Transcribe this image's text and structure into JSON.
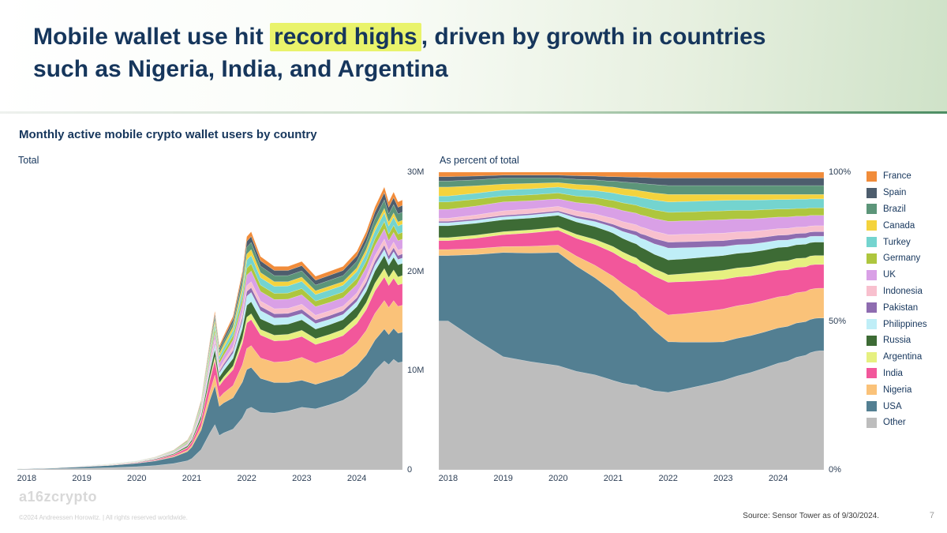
{
  "slide": {
    "title": {
      "pre": "Mobile wallet use hit ",
      "highlight": "record highs",
      "post": ", driven by growth in countries",
      "line2": "such as Nigeria, India, and Argentina"
    },
    "subtitle": "Monthly active mobile crypto wallet users by country",
    "title_color": "#16365c",
    "highlight_color": "#e9f36b"
  },
  "footer": {
    "logo_text": "a16zcrypto",
    "copyright": "©2024 Andreessen Horowitz.  |  All rights reserved worldwide.",
    "source": "Source: Sensor Tower as of 9/30/2024.",
    "page_number": "7"
  },
  "chart_data": {
    "type": "area",
    "stacked": true,
    "x": [
      2017.83,
      2018.0,
      2018.5,
      2019.0,
      2019.5,
      2020.0,
      2020.33,
      2020.67,
      2020.92,
      2021.0,
      2021.17,
      2021.33,
      2021.42,
      2021.5,
      2021.58,
      2021.75,
      2021.92,
      2022.0,
      2022.08,
      2022.25,
      2022.5,
      2022.75,
      2023.0,
      2023.25,
      2023.5,
      2023.75,
      2024.0,
      2024.17,
      2024.33,
      2024.5,
      2024.58,
      2024.67,
      2024.75,
      2024.83
    ],
    "x_ticks": [
      2018,
      2019,
      2020,
      2021,
      2022,
      2023,
      2024
    ],
    "totals_millions": [
      0.12,
      0.15,
      0.25,
      0.4,
      0.6,
      0.9,
      1.3,
      2.0,
      3.0,
      3.8,
      7.0,
      13.0,
      16.0,
      12.5,
      13.5,
      15.5,
      20.0,
      23.5,
      24.0,
      21.5,
      20.5,
      20.5,
      21.0,
      19.5,
      20.0,
      20.5,
      22.0,
      24.0,
      26.5,
      28.5,
      27.0,
      28.0,
      27.0,
      27.2
    ],
    "charts": [
      {
        "title": "Total",
        "mode": "absolute",
        "ymax": 30,
        "y_ticks": [
          {
            "v": 0,
            "label": "0"
          },
          {
            "v": 10,
            "label": "10M"
          },
          {
            "v": 20,
            "label": "20M"
          },
          {
            "v": 30,
            "label": "30M"
          }
        ]
      },
      {
        "title": "As percent of total",
        "mode": "percent",
        "ymax": 100,
        "y_ticks": [
          {
            "v": 0,
            "label": "0%"
          },
          {
            "v": 50,
            "label": "50%"
          },
          {
            "v": 100,
            "label": "100%"
          }
        ]
      }
    ],
    "series": [
      {
        "name": "Other",
        "color": "#bdbdbd",
        "share_pct": [
          50,
          50,
          43.8,
          38,
          36.3,
          35,
          33.1,
          31.9,
          30.5,
          30,
          29.1,
          28.6,
          28.5,
          27.7,
          27.5,
          26.5,
          26.2,
          26,
          26.3,
          26.9,
          27.9,
          28.9,
          30,
          31.5,
          32.7,
          34.2,
          35.8,
          36.5,
          37.8,
          38.5,
          39.3,
          39.8,
          40,
          40
        ]
      },
      {
        "name": "USA",
        "color": "#537f92",
        "share_pct": [
          22,
          22,
          28.5,
          35,
          36.5,
          38,
          35.4,
          32.6,
          30.6,
          30,
          27.8,
          25.7,
          24.5,
          23.5,
          22.5,
          20.3,
          18,
          17,
          16.7,
          16,
          15,
          14,
          13,
          12.7,
          12.4,
          12.1,
          11.9,
          11.7,
          11.5,
          11.3,
          11.2,
          11.1,
          11,
          11
        ]
      },
      {
        "name": "Nigeria",
        "color": "#fac279",
        "share_pct": [
          2,
          2,
          2,
          2,
          2.3,
          2.5,
          3.3,
          4.2,
          4.8,
          5,
          5.7,
          6.3,
          6.7,
          7,
          7.3,
          8,
          8.7,
          9,
          9.2,
          9.5,
          10,
          10.5,
          11,
          10.9,
          10.7,
          10.6,
          10.4,
          10.3,
          10.2,
          10.1,
          10.1,
          10,
          10,
          10
        ]
      },
      {
        "name": "India",
        "color": "#f2579b",
        "share_pct": [
          3,
          3,
          3.5,
          4,
          4.5,
          5,
          6,
          7,
          7.8,
          8,
          8.5,
          9,
          9.3,
          9.5,
          9.7,
          10.3,
          10.8,
          11,
          10.9,
          10.8,
          10.5,
          10.3,
          10,
          9.7,
          9.4,
          9.1,
          8.9,
          8.7,
          8.5,
          8.3,
          8.2,
          8.1,
          8,
          8
        ]
      },
      {
        "name": "Argentina",
        "color": "#e6f080",
        "share_pct": [
          1,
          1,
          1,
          1,
          1,
          1,
          1.3,
          1.7,
          1.9,
          2,
          2.1,
          2.2,
          2.2,
          2.3,
          2.3,
          2.4,
          2.5,
          2.5,
          2.5,
          2.6,
          2.8,
          2.9,
          3,
          3,
          3,
          3,
          3,
          3,
          3,
          3,
          3,
          3,
          3,
          3
        ]
      },
      {
        "name": "Russia",
        "color": "#3d6b35",
        "share_pct": [
          4,
          4,
          4,
          4,
          4,
          4,
          4.2,
          4.3,
          4.5,
          4.5,
          4.6,
          4.7,
          4.7,
          4.8,
          4.8,
          4.9,
          5,
          5,
          5,
          5,
          5,
          5,
          5,
          4.9,
          4.9,
          4.8,
          4.7,
          4.7,
          4.6,
          4.6,
          4.5,
          4.5,
          4.5,
          4.5
        ]
      },
      {
        "name": "Philippines",
        "color": "#bfeef7",
        "share_pct": [
          1,
          1,
          1,
          1,
          1,
          1,
          1.3,
          1.7,
          1.9,
          2,
          2.3,
          2.7,
          2.8,
          3,
          3.2,
          3.5,
          3.8,
          4,
          3.9,
          3.8,
          3.5,
          3.3,
          3,
          2.9,
          2.7,
          2.6,
          2.4,
          2.3,
          2.2,
          2.1,
          2.1,
          2,
          2,
          2
        ]
      },
      {
        "name": "Pakistan",
        "color": "#8e6cb0",
        "share_pct": [
          0.5,
          0.5,
          0.5,
          0.5,
          0.5,
          0.5,
          0.7,
          0.8,
          0.9,
          1,
          1.2,
          1.3,
          1.4,
          1.5,
          1.6,
          1.8,
          1.9,
          2,
          2,
          2,
          2,
          2,
          2,
          1.9,
          1.9,
          1.8,
          1.7,
          1.7,
          1.6,
          1.6,
          1.5,
          1.5,
          1.5,
          1.5
        ]
      },
      {
        "name": "Indonesia",
        "color": "#f8c0ce",
        "share_pct": [
          1,
          1,
          1.3,
          1.5,
          1.5,
          1.5,
          1.7,
          1.8,
          1.9,
          2,
          2.1,
          2.2,
          2.2,
          2.3,
          2.3,
          2.4,
          2.5,
          2.5,
          2.5,
          2.5,
          2.5,
          2.5,
          2.5,
          2.4,
          2.4,
          2.3,
          2.2,
          2.2,
          2.1,
          2.1,
          2,
          2,
          2,
          2
        ]
      },
      {
        "name": "UK",
        "color": "#d9a0e6",
        "share_pct": [
          3,
          3,
          3,
          3,
          2.8,
          2.5,
          2.8,
          3.2,
          3.4,
          3.5,
          3.7,
          3.8,
          3.9,
          4,
          4.1,
          4.3,
          4.4,
          4.5,
          4.5,
          4.5,
          4.5,
          4.5,
          4.5,
          4.4,
          4.2,
          4.1,
          3.9,
          3.8,
          3.7,
          3.6,
          3.6,
          3.5,
          3.5,
          3.5
        ]
      },
      {
        "name": "Germany",
        "color": "#aec63e",
        "share_pct": [
          2.5,
          2.5,
          2.3,
          2,
          2,
          2,
          2.2,
          2.3,
          2.5,
          2.5,
          2.6,
          2.7,
          2.7,
          2.8,
          2.8,
          2.9,
          3,
          3,
          3,
          3,
          3,
          3,
          3,
          2.9,
          2.9,
          2.8,
          2.7,
          2.7,
          2.6,
          2.6,
          2.5,
          2.5,
          2.5,
          2.5
        ]
      },
      {
        "name": "Turkey",
        "color": "#74d4cf",
        "share_pct": [
          2,
          2,
          2,
          2,
          2,
          2,
          2.2,
          2.3,
          2.5,
          2.5,
          2.7,
          2.8,
          2.9,
          3,
          3.1,
          3.3,
          3.4,
          3.5,
          3.5,
          3.5,
          3.5,
          3.5,
          3.5,
          3.4,
          3.4,
          3.3,
          3.2,
          3.2,
          3.1,
          3.1,
          3,
          3,
          3,
          3
        ]
      },
      {
        "name": "Canada",
        "color": "#f4d33d",
        "share_pct": [
          3,
          3,
          2.5,
          2,
          1.8,
          1.5,
          1.7,
          1.8,
          1.9,
          2,
          2.1,
          2.2,
          2.2,
          2.3,
          2.3,
          2.4,
          2.5,
          2.5,
          2.5,
          2.4,
          2.3,
          2.1,
          2,
          1.9,
          1.9,
          1.8,
          1.7,
          1.7,
          1.6,
          1.6,
          1.5,
          1.5,
          1.5,
          1.5
        ]
      },
      {
        "name": "Brazil",
        "color": "#5c9579",
        "share_pct": [
          2,
          2,
          2,
          2,
          1.8,
          1.5,
          1.7,
          1.8,
          1.9,
          2,
          2.2,
          2.3,
          2.4,
          2.5,
          2.6,
          2.8,
          2.9,
          3,
          3,
          3,
          3,
          3,
          3,
          3,
          3,
          3,
          3,
          3,
          3,
          3,
          3,
          3,
          3,
          3
        ]
      },
      {
        "name": "Spain",
        "color": "#4d5d6d",
        "share_pct": [
          1.5,
          1.5,
          1.3,
          1,
          1,
          1,
          1.2,
          1.3,
          1.5,
          1.5,
          1.7,
          1.8,
          1.9,
          2,
          2.1,
          2.3,
          2.4,
          2.5,
          2.5,
          2.5,
          2.5,
          2.5,
          2.5,
          2.5,
          2.5,
          2.5,
          2.5,
          2.5,
          2.5,
          2.5,
          2.5,
          2.5,
          2.5,
          2.5
        ]
      },
      {
        "name": "France",
        "color": "#f18c3a",
        "share_pct": [
          1.5,
          1.5,
          1.3,
          1,
          1,
          1,
          1.2,
          1.3,
          1.5,
          1.5,
          1.6,
          1.7,
          1.7,
          1.8,
          1.8,
          1.9,
          2,
          2,
          2,
          2,
          2,
          2,
          2,
          2,
          2,
          2,
          2,
          2,
          2,
          2,
          2,
          2,
          2,
          2
        ]
      }
    ]
  }
}
